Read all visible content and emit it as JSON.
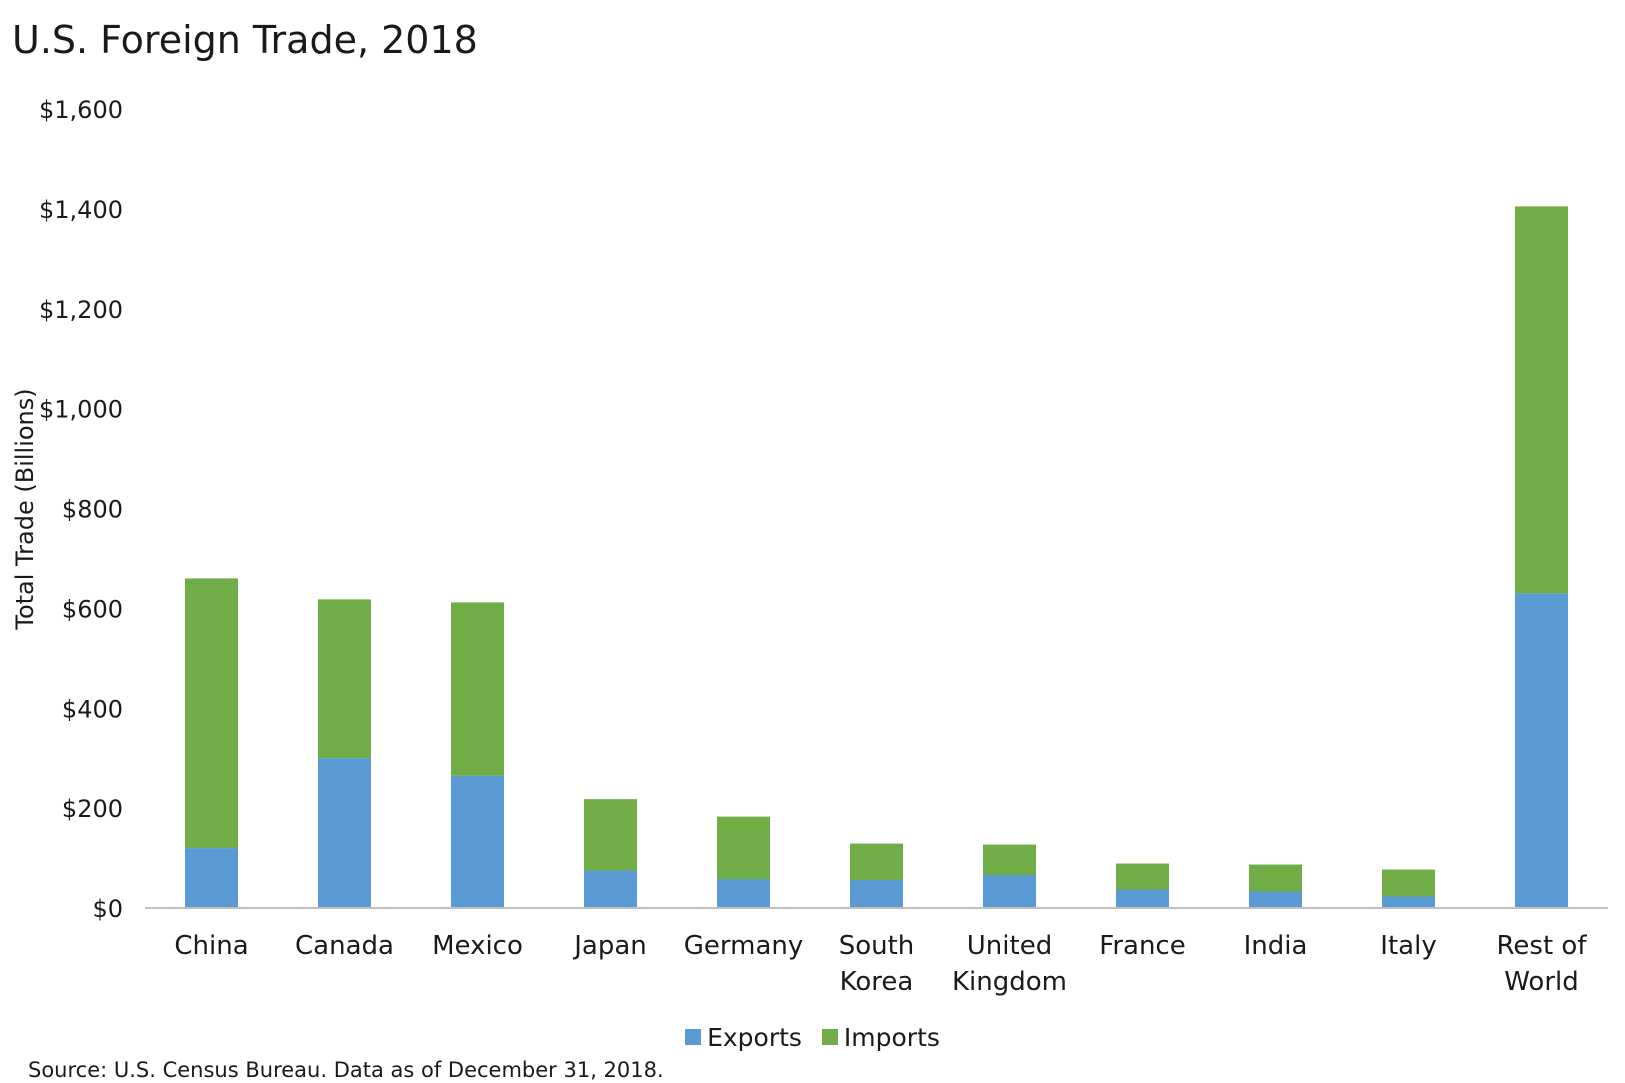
{
  "title": "U.S. Foreign Trade, 2018",
  "source": "Source: U.S. Census Bureau. Data as of December 31, 2018.",
  "colors": {
    "exports": "#5B9BD5",
    "imports": "#70AD47",
    "axis": "#BFBFBF"
  },
  "chart_data": {
    "type": "bar",
    "stacked": true,
    "title": "U.S. Foreign Trade, 2018",
    "ylabel": "Total Trade (Billions)",
    "xlabel": "",
    "ylim": [
      0,
      1600
    ],
    "yticks": [
      0,
      200,
      400,
      600,
      800,
      1000,
      1200,
      1400,
      1600
    ],
    "ytick_labels": [
      "$0",
      "$200",
      "$400",
      "$600",
      "$800",
      "$1,000",
      "$1,200",
      "$1,400",
      "$1,600"
    ],
    "grid": false,
    "legend_position": "bottom",
    "categories": [
      [
        "China"
      ],
      [
        "Canada"
      ],
      [
        "Mexico"
      ],
      [
        "Japan"
      ],
      [
        "Germany"
      ],
      [
        "South",
        "Korea"
      ],
      [
        "United",
        "Kingdom"
      ],
      [
        "France"
      ],
      [
        "India"
      ],
      [
        "Italy"
      ],
      [
        "Rest of",
        "World"
      ]
    ],
    "series": [
      {
        "name": "Exports",
        "values": [
          120,
          300,
          265,
          75,
          58,
          56,
          66,
          37,
          33,
          23,
          630
        ]
      },
      {
        "name": "Imports",
        "values": [
          540,
          318,
          347,
          143,
          125,
          73,
          61,
          52,
          54,
          54,
          775
        ]
      }
    ]
  }
}
